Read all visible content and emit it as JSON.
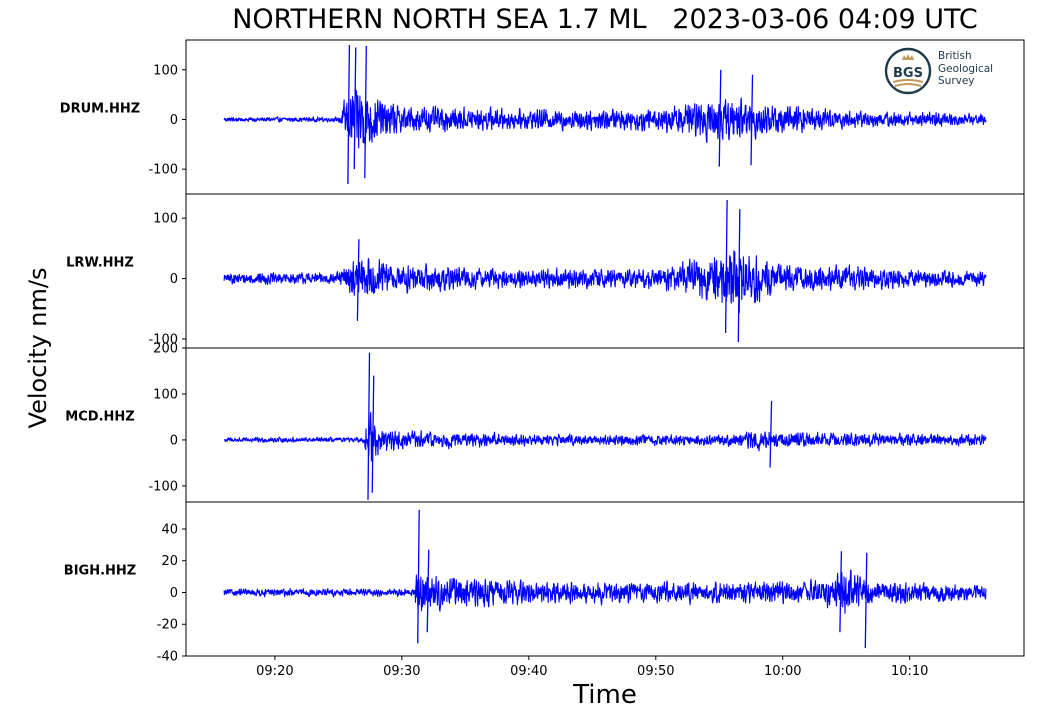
{
  "chart_data": {
    "type": "line",
    "title": "NORTHERN NORTH SEA 1.7 ML   2023-03-06 04:09 UTC",
    "xlabel": "Time",
    "ylabel": "Velocity nm/s",
    "line_color": "#0000ff",
    "x_range": [
      "09:13",
      "10:19"
    ],
    "x_ticks": [
      "09:20",
      "09:30",
      "09:40",
      "09:50",
      "10:00",
      "10:10"
    ],
    "grid": false,
    "panels": [
      {
        "station": "DRUM.HHZ",
        "ylim": [
          -150,
          160
        ],
        "yticks": [
          100,
          0,
          -100
        ],
        "ytick_labels": [
          "100",
          "0",
          "-100"
        ],
        "envelope": {
          "time": [
            "09:16",
            "09:25",
            "09:25:30",
            "09:26",
            "09:27",
            "09:28",
            "09:30",
            "09:40",
            "09:50",
            "09:54",
            "09:56",
            "09:58",
            "10:05",
            "10:16"
          ],
          "amplitude": [
            6,
            6,
            50,
            85,
            95,
            55,
            35,
            25,
            28,
            50,
            55,
            45,
            22,
            15
          ]
        },
        "peaks": [
          {
            "time": "09:25:45",
            "min": -130,
            "max": 150
          },
          {
            "time": "09:26:15",
            "min": -100,
            "max": 145
          },
          {
            "time": "09:27:05",
            "min": -118,
            "max": 148
          },
          {
            "time": "09:55:00",
            "min": -95,
            "max": 100
          },
          {
            "time": "09:57:30",
            "min": -92,
            "max": 90
          }
        ]
      },
      {
        "station": "LRW.HHZ",
        "ylim": [
          -115,
          140
        ],
        "yticks": [
          100,
          0,
          -100
        ],
        "ytick_labels": [
          "100",
          "0",
          "-100"
        ],
        "envelope": {
          "time": [
            "09:16",
            "09:25",
            "09:26",
            "09:27",
            "09:30",
            "09:40",
            "09:50",
            "09:54",
            "09:56",
            "09:58",
            "10:00",
            "10:16"
          ],
          "amplitude": [
            12,
            12,
            40,
            45,
            30,
            20,
            22,
            45,
            75,
            55,
            30,
            15
          ]
        },
        "peaks": [
          {
            "time": "09:26:30",
            "min": -70,
            "max": 65
          },
          {
            "time": "09:55:30",
            "min": -90,
            "max": 130
          },
          {
            "time": "09:56:30",
            "min": -105,
            "max": 115
          }
        ]
      },
      {
        "station": "MCD.HHZ",
        "ylim": [
          -135,
          200
        ],
        "yticks": [
          200,
          100,
          0,
          -100
        ],
        "ytick_labels": [
          "200",
          "100",
          "0",
          "-100"
        ],
        "envelope": {
          "time": [
            "09:16",
            "09:27",
            "09:27:20",
            "09:28",
            "09:30",
            "09:40",
            "09:55",
            "09:58",
            "10:00",
            "10:16"
          ],
          "amplitude": [
            7,
            7,
            100,
            40,
            25,
            15,
            15,
            28,
            20,
            14
          ]
        },
        "peaks": [
          {
            "time": "09:27:20",
            "min": -130,
            "max": 190
          },
          {
            "time": "09:27:40",
            "min": -115,
            "max": 140
          },
          {
            "time": "09:59:00",
            "min": -60,
            "max": 85
          }
        ]
      },
      {
        "station": "BIGH.HHZ",
        "ylim": [
          -40,
          57
        ],
        "yticks": [
          40,
          20,
          0,
          -20,
          -40
        ],
        "ytick_labels": [
          "40",
          "20",
          "0",
          "-20",
          "-40"
        ],
        "envelope": {
          "time": [
            "09:16",
            "09:31",
            "09:31:10",
            "09:32",
            "09:40",
            "09:50",
            "10:03",
            "10:05",
            "10:07",
            "10:16"
          ],
          "amplitude": [
            3,
            3,
            20,
            14,
            9,
            8,
            9,
            17,
            10,
            6
          ]
        },
        "peaks": [
          {
            "time": "09:31:15",
            "min": -32,
            "max": 52
          },
          {
            "time": "09:32:00",
            "min": -25,
            "max": 27
          },
          {
            "time": "10:04:30",
            "min": -25,
            "max": 26
          },
          {
            "time": "10:06:30",
            "min": -35,
            "max": 25
          }
        ]
      }
    ]
  },
  "logo": {
    "mark": "BGS",
    "lines": [
      "British",
      "Geological",
      "Survey"
    ],
    "icon": "crown-icon",
    "colors": {
      "ring": "#1f3a4b",
      "gold": "#c49a5a"
    }
  }
}
